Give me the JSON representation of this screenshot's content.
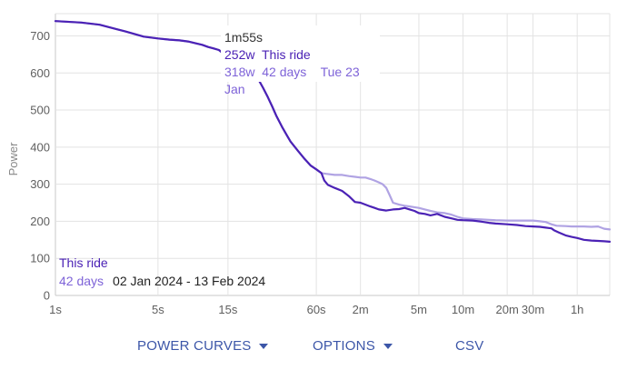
{
  "chart_data": {
    "type": "line",
    "xlabel": "",
    "ylabel": "Power",
    "x_scale": "log",
    "x_ticks": [
      "1s",
      "5s",
      "15s",
      "60s",
      "2m",
      "5m",
      "10m",
      "20m",
      "30m",
      "1h"
    ],
    "x_tick_seconds": [
      1,
      5,
      15,
      60,
      120,
      300,
      600,
      1200,
      1800,
      3600
    ],
    "x_range_seconds": [
      1,
      6000
    ],
    "y_ticks": [
      0,
      100,
      200,
      300,
      400,
      500,
      600,
      700
    ],
    "ylim": [
      0,
      760
    ],
    "grid": true,
    "series": [
      {
        "name": "This ride",
        "color": "#4b22b5",
        "x": [
          1,
          1.5,
          2,
          3,
          4,
          5,
          6,
          7,
          8,
          9,
          10,
          11,
          12,
          13,
          14,
          15,
          17,
          18,
          20,
          22,
          24,
          26,
          28,
          30,
          32,
          35,
          38,
          40,
          45,
          50,
          55,
          60,
          65,
          68,
          72,
          80,
          90,
          100,
          110,
          120,
          130,
          140,
          150,
          160,
          180,
          200,
          220,
          240,
          260,
          280,
          300,
          330,
          360,
          400,
          450,
          500,
          550,
          600,
          700,
          800,
          900,
          1000,
          1200,
          1400,
          1600,
          1800,
          2000,
          2200,
          2300,
          2400,
          2500,
          2700,
          3000,
          3300,
          3600,
          4000,
          4500,
          5000,
          5500,
          6000
        ],
        "values": [
          740,
          736,
          730,
          712,
          698,
          693,
          690,
          688,
          685,
          680,
          676,
          670,
          666,
          662,
          652,
          645,
          638,
          632,
          620,
          605,
          585,
          560,
          535,
          510,
          485,
          455,
          430,
          415,
          390,
          368,
          350,
          340,
          330,
          310,
          298,
          290,
          282,
          268,
          252,
          250,
          245,
          240,
          236,
          232,
          229,
          232,
          233,
          236,
          232,
          228,
          222,
          220,
          216,
          220,
          212,
          208,
          204,
          203,
          202,
          199,
          196,
          194,
          192,
          190,
          187,
          186,
          185,
          183,
          182,
          181,
          176,
          170,
          162,
          158,
          155,
          150,
          148,
          147,
          146,
          145
        ]
      },
      {
        "name": "42 days",
        "color": "#b0a3e3",
        "x": [
          1,
          1.5,
          2,
          3,
          4,
          5,
          6,
          7,
          8,
          9,
          10,
          11,
          12,
          13,
          14,
          15,
          17,
          18,
          20,
          22,
          24,
          26,
          28,
          30,
          32,
          35,
          38,
          40,
          45,
          50,
          55,
          60,
          65,
          70,
          80,
          90,
          100,
          110,
          120,
          130,
          140,
          150,
          160,
          170,
          180,
          190,
          200,
          220,
          240,
          260,
          280,
          300,
          330,
          360,
          400,
          450,
          500,
          550,
          600,
          700,
          800,
          900,
          1000,
          1200,
          1400,
          1600,
          1800,
          2000,
          2200,
          2300,
          2400,
          2600,
          3000,
          3300,
          3600,
          4000,
          4500,
          5000,
          5500,
          6000
        ],
        "values": [
          740,
          736,
          730,
          712,
          698,
          693,
          690,
          688,
          685,
          680,
          676,
          670,
          666,
          662,
          652,
          645,
          638,
          632,
          620,
          605,
          585,
          560,
          535,
          510,
          485,
          455,
          430,
          415,
          390,
          368,
          350,
          340,
          330,
          328,
          325,
          325,
          322,
          320,
          318,
          318,
          314,
          310,
          305,
          300,
          290,
          270,
          250,
          245,
          242,
          240,
          238,
          236,
          232,
          228,
          224,
          222,
          218,
          212,
          208,
          206,
          205,
          204,
          203,
          202,
          202,
          202,
          202,
          200,
          198,
          195,
          192,
          188,
          187,
          186,
          186,
          186,
          185,
          186,
          180,
          178
        ]
      }
    ]
  },
  "tooltip": {
    "time": "1m55s",
    "this_ride_value": "252w",
    "this_ride_label": "This ride",
    "days_value": "318w",
    "days_label": "42 days",
    "days_date": "Tue 23 Jan"
  },
  "legend": {
    "this_ride": "This ride",
    "days": "42 days",
    "range": "02 Jan 2024 - 13 Feb 2024"
  },
  "buttons": {
    "power_curves": "POWER CURVES",
    "options": "OPTIONS",
    "csv": "CSV"
  }
}
